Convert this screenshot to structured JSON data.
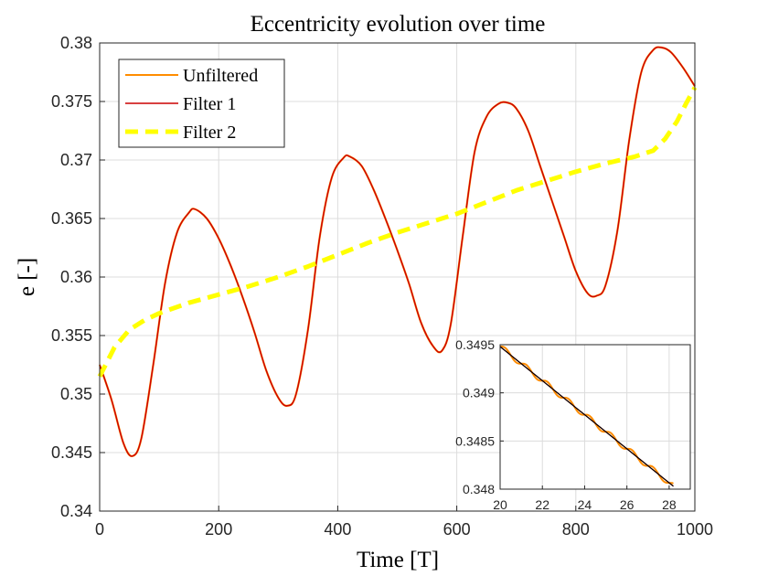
{
  "chart_data": [
    {
      "type": "line",
      "title": "Eccentricity evolution over time",
      "xlabel": "Time [T]",
      "ylabel": "e [-]",
      "xlim": [
        0,
        1000
      ],
      "ylim": [
        0.34,
        0.38
      ],
      "xticks": [
        0,
        200,
        400,
        600,
        800,
        1000
      ],
      "xtick_labels": [
        "0",
        "200",
        "400",
        "600",
        "800",
        "1000"
      ],
      "yticks": [
        0.34,
        0.345,
        0.35,
        0.355,
        0.36,
        0.365,
        0.37,
        0.375,
        0.38
      ],
      "ytick_labels": [
        "0.34",
        "0.345",
        "0.35",
        "0.355",
        "0.36",
        "0.365",
        "0.37",
        "0.375",
        "0.38"
      ],
      "grid": true,
      "legend_position": "top-left",
      "series": [
        {
          "name": "Unfiltered",
          "color": "#ff8c00",
          "style": "solid",
          "x": [
            0,
            20,
            40,
            55,
            70,
            90,
            110,
            130,
            150,
            160,
            180,
            200,
            220,
            240,
            260,
            280,
            300,
            315,
            330,
            350,
            370,
            390,
            410,
            420,
            440,
            460,
            480,
            500,
            520,
            540,
            560,
            575,
            590,
            610,
            630,
            650,
            670,
            685,
            700,
            720,
            740,
            760,
            780,
            800,
            820,
            835,
            850,
            870,
            890,
            910,
            930,
            945,
            960,
            980,
            1000
          ],
          "y": [
            0.3525,
            0.3495,
            0.3458,
            0.3447,
            0.3462,
            0.3525,
            0.3595,
            0.3638,
            0.3655,
            0.3658,
            0.365,
            0.3633,
            0.361,
            0.3583,
            0.3553,
            0.352,
            0.3497,
            0.349,
            0.35,
            0.3555,
            0.3635,
            0.3685,
            0.3702,
            0.3703,
            0.3695,
            0.3675,
            0.365,
            0.3623,
            0.3594,
            0.3561,
            0.3541,
            0.3537,
            0.356,
            0.3635,
            0.3707,
            0.3737,
            0.3748,
            0.3749,
            0.3744,
            0.3725,
            0.3695,
            0.3665,
            0.3635,
            0.3605,
            0.3586,
            0.3584,
            0.3593,
            0.364,
            0.3718,
            0.3775,
            0.3794,
            0.3796,
            0.3792,
            0.3779,
            0.3763
          ]
        },
        {
          "name": "Filter 1",
          "color": "#cc0000",
          "style": "solid",
          "x": [
            0,
            20,
            40,
            55,
            70,
            90,
            110,
            130,
            150,
            160,
            180,
            200,
            220,
            240,
            260,
            280,
            300,
            315,
            330,
            350,
            370,
            390,
            410,
            420,
            440,
            460,
            480,
            500,
            520,
            540,
            560,
            575,
            590,
            610,
            630,
            650,
            670,
            685,
            700,
            720,
            740,
            760,
            780,
            800,
            820,
            835,
            850,
            870,
            890,
            910,
            930,
            945,
            960,
            980,
            1000
          ],
          "y": [
            0.3525,
            0.3495,
            0.3458,
            0.3447,
            0.3462,
            0.3525,
            0.3595,
            0.3638,
            0.3655,
            0.3658,
            0.365,
            0.3633,
            0.361,
            0.3583,
            0.3553,
            0.352,
            0.3497,
            0.349,
            0.35,
            0.3555,
            0.3635,
            0.3685,
            0.3702,
            0.3703,
            0.3695,
            0.3675,
            0.365,
            0.3623,
            0.3594,
            0.3561,
            0.3541,
            0.3537,
            0.356,
            0.3635,
            0.3707,
            0.3737,
            0.3748,
            0.3749,
            0.3744,
            0.3725,
            0.3695,
            0.3665,
            0.3635,
            0.3605,
            0.3586,
            0.3584,
            0.3593,
            0.364,
            0.3718,
            0.3775,
            0.3794,
            0.3796,
            0.3792,
            0.3779,
            0.3763
          ]
        },
        {
          "name": "Filter 2",
          "color": "#ffff00",
          "style": "dashed",
          "x": [
            0,
            10,
            25,
            50,
            75,
            100,
            150,
            200,
            250,
            300,
            350,
            400,
            450,
            500,
            550,
            600,
            650,
            700,
            750,
            800,
            850,
            900,
            930,
            950,
            970,
            985,
            1000
          ],
          "y": [
            0.3515,
            0.3525,
            0.354,
            0.3555,
            0.3563,
            0.3569,
            0.3578,
            0.3585,
            0.3592,
            0.36,
            0.3609,
            0.3619,
            0.3629,
            0.3638,
            0.3646,
            0.3654,
            0.3664,
            0.3674,
            0.3682,
            0.369,
            0.3697,
            0.3703,
            0.3708,
            0.3718,
            0.3733,
            0.3748,
            0.3762
          ]
        }
      ]
    },
    {
      "type": "line",
      "title": "",
      "xlim": [
        20,
        29
      ],
      "ylim": [
        0.348,
        0.3495
      ],
      "xticks": [
        20,
        22,
        24,
        26,
        28
      ],
      "xtick_labels": [
        "20",
        "22",
        "24",
        "26",
        "28"
      ],
      "yticks": [
        0.348,
        0.3485,
        0.349,
        0.3495
      ],
      "ytick_labels": [
        "0.348",
        "0.3485",
        "0.349",
        "0.3495"
      ],
      "grid": true,
      "series": [
        {
          "name": "Unfiltered",
          "color": "#ff8c00",
          "style": "solid",
          "oscillation_amplitude": 3e-05,
          "oscillation_period": 1.0,
          "x": [
            20,
            28.2
          ],
          "y": [
            0.34948,
            0.34803
          ]
        },
        {
          "name": "Filter 1",
          "color": "#cc0000",
          "style": "solid",
          "x": [
            20,
            28.2
          ],
          "y": [
            0.34948,
            0.34803
          ]
        },
        {
          "name": "Filter 2",
          "color": "#000000",
          "style": "solid",
          "x": [
            20,
            28.2
          ],
          "y": [
            0.34948,
            0.34803
          ]
        }
      ]
    }
  ]
}
